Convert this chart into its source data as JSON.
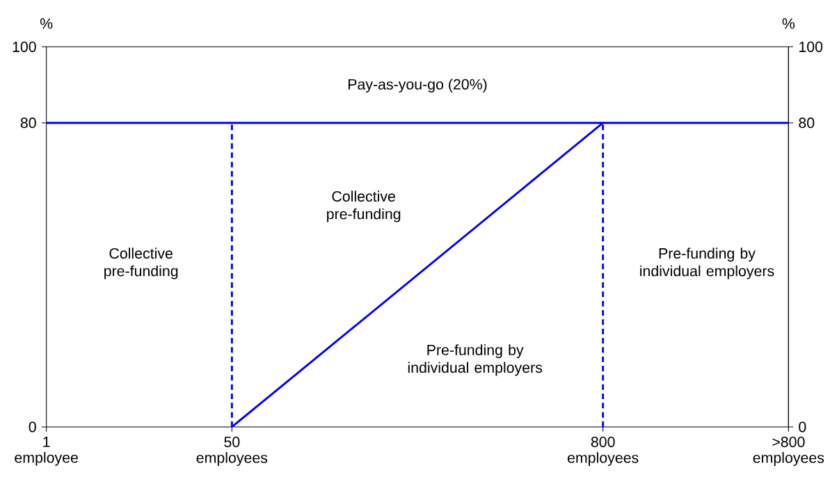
{
  "chart_data": {
    "type": "line",
    "categories": [
      "1 employee",
      "50 employees",
      null,
      "800 employees",
      ">800 employees"
    ],
    "series": [
      {
        "color": "#0000ff",
        "values": [
          80,
          80,
          80,
          80,
          80
        ]
      },
      {
        "color": "#0000ff",
        "x": [
          "50 employees",
          "800 employees"
        ],
        "values": [
          0,
          80
        ]
      },
      {
        "color": "#0000ff",
        "line_style": "dashed",
        "x": [
          "50 employees",
          "50 employees"
        ],
        "values": [
          0,
          80
        ]
      },
      {
        "color": "#0000ff",
        "line_style": "dashed",
        "x": [
          "800 employees",
          "800 employees"
        ],
        "values": [
          0,
          80
        ]
      }
    ],
    "ylabel": "%",
    "y2label": "%",
    "ylim": [
      0,
      100
    ],
    "yticks": [
      0,
      80,
      100
    ],
    "y2lim": [
      0,
      100
    ],
    "y2ticks": [
      0,
      80,
      100
    ],
    "annotations": [
      "Pay-as-you-go (20%)",
      "Collective pre-funding",
      "Collective pre-funding",
      "Pre-funding by individual employers",
      "Pre-funding by individual employers"
    ],
    "marker": "none",
    "line_style": "solid"
  }
}
